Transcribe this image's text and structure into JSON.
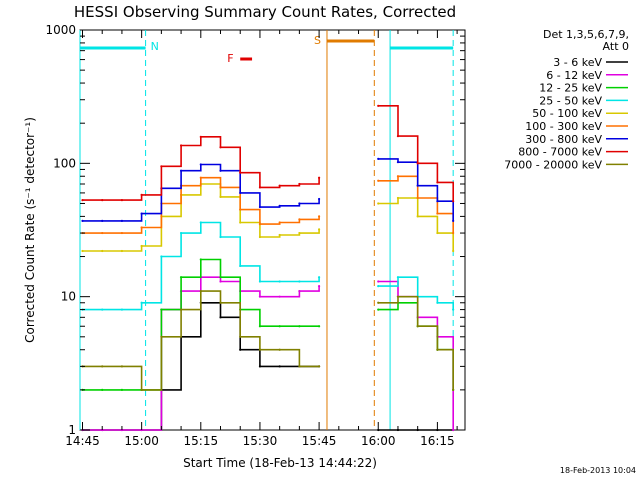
{
  "chart_data": {
    "type": "line",
    "title": "HESSI Observing Summary Count Rates, Corrected",
    "xlabel": "Start Time (18-Feb-13 14:44:22)",
    "ylabel": "Corrected Count Rate (s⁻¹ detector⁻¹)",
    "y_scale": "log",
    "ylim": [
      1,
      1000
    ],
    "xlim": [
      "14:44:22",
      "16:22:00"
    ],
    "x_ticks": [
      "14:45",
      "15:00",
      "15:15",
      "15:30",
      "15:45",
      "16:00",
      "16:15"
    ],
    "y_ticks": [
      "1",
      "10",
      "100",
      "1000"
    ],
    "grid": false,
    "legend_title": "Det 1,3,5,6,7,9,",
    "legend_subtitle": "Att 0",
    "legend_position": "right",
    "timestamp": "18-Feb-2013 10:04",
    "annotations": [
      {
        "label": "N",
        "color": "#00e5e5",
        "kind": "night",
        "intervals": [
          [
            "14:44:22",
            "15:01"
          ],
          [
            "16:03",
            "16:19"
          ]
        ]
      },
      {
        "label": "S",
        "color": "#e07b00",
        "kind": "SAA",
        "intervals": [
          [
            "15:47",
            "15:59"
          ]
        ]
      },
      {
        "label": "F",
        "color": "#e00000",
        "kind": "flare",
        "intervals": [
          [
            "15:25",
            "15:28"
          ]
        ]
      }
    ],
    "gap": [
      "15:47",
      "15:59"
    ],
    "times": [
      "14:45",
      "14:50",
      "14:55",
      "15:00",
      "15:05",
      "15:10",
      "15:15",
      "15:20",
      "15:25",
      "15:30",
      "15:35",
      "15:40",
      "15:45",
      "16:00",
      "16:05",
      "16:10",
      "16:15",
      "16:19"
    ],
    "series": [
      {
        "name": "3 - 6 keV",
        "color": "#000000",
        "values": [
          1,
          1,
          1,
          1,
          2,
          5,
          9,
          7,
          4,
          3,
          3,
          3,
          3,
          1,
          1,
          1,
          1,
          1
        ]
      },
      {
        "name": "6 - 12 keV",
        "color": "#e000e0",
        "values": [
          1,
          1,
          1,
          1,
          8,
          11,
          14,
          13,
          11,
          10,
          10,
          11,
          12,
          13,
          10,
          7,
          5,
          1
        ]
      },
      {
        "name": "12 - 25 keV",
        "color": "#00d000",
        "values": [
          2,
          2,
          2,
          2,
          8,
          14,
          19,
          14,
          8,
          6,
          6,
          6,
          6,
          8,
          9,
          6,
          4,
          2
        ]
      },
      {
        "name": "25 - 50 keV",
        "color": "#00e5e5",
        "values": [
          8,
          8,
          8,
          9,
          20,
          30,
          36,
          28,
          17,
          13,
          13,
          13,
          14,
          12,
          14,
          10,
          9,
          8
        ]
      },
      {
        "name": "50 - 100 keV",
        "color": "#d8c800",
        "values": [
          22,
          22,
          22,
          24,
          40,
          58,
          70,
          56,
          36,
          28,
          29,
          30,
          32,
          50,
          55,
          40,
          30,
          22
        ]
      },
      {
        "name": "100 - 300 keV",
        "color": "#ff7000",
        "values": [
          30,
          30,
          30,
          33,
          50,
          68,
          78,
          66,
          45,
          35,
          36,
          38,
          40,
          74,
          80,
          55,
          42,
          30
        ]
      },
      {
        "name": "300 - 800 keV",
        "color": "#0000e0",
        "values": [
          37,
          37,
          37,
          42,
          65,
          88,
          98,
          88,
          60,
          47,
          48,
          50,
          54,
          108,
          102,
          68,
          52,
          37
        ]
      },
      {
        "name": "800 - 7000 keV",
        "color": "#e00000",
        "values": [
          53,
          53,
          53,
          58,
          95,
          136,
          158,
          132,
          85,
          66,
          68,
          70,
          78,
          270,
          160,
          100,
          72,
          52
        ]
      },
      {
        "name": "7000 - 20000 keV",
        "color": "#808000",
        "values": [
          3,
          3,
          3,
          2,
          5,
          8,
          11,
          9,
          5,
          4,
          4,
          3,
          3,
          9,
          10,
          6,
          4,
          2
        ]
      }
    ]
  }
}
